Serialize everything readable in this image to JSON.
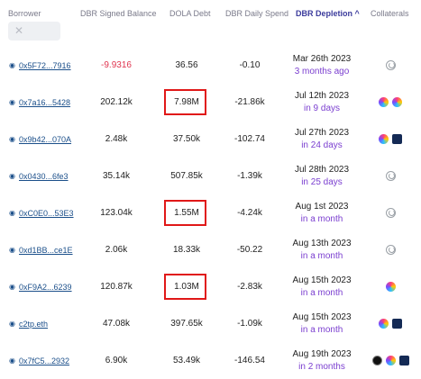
{
  "headers": {
    "borrower": "Borrower",
    "balance": "DBR Signed Balance",
    "debt": "DOLA Debt",
    "spend": "DBR Daily Spend",
    "depletion": "DBR Depletion",
    "depletion_sort": "^",
    "collaterals": "Collaterals"
  },
  "filter": {
    "clear_symbol": "✕"
  },
  "rows": [
    {
      "borrower": "0x5F72...7916",
      "balance": "-9.9316",
      "debt": "36.56",
      "spend": "-0.10",
      "date": "Mar 26th 2023",
      "rel": "3 months ago",
      "coll": [
        "dbr-grey"
      ]
    },
    {
      "borrower": "0x7a16...5428",
      "balance": "202.12k",
      "debt": "7.98M",
      "spend": "-21.86k",
      "date": "Jul 12th 2023",
      "rel": "in 9 days",
      "coll": [
        "color",
        "color"
      ]
    },
    {
      "borrower": "0x9b42...070A",
      "balance": "2.48k",
      "debt": "37.50k",
      "spend": "-102.74",
      "date": "Jul 27th 2023",
      "rel": "in 24 days",
      "coll": [
        "color",
        "dark"
      ]
    },
    {
      "borrower": "0x0430...6fe3",
      "balance": "35.14k",
      "debt": "507.85k",
      "spend": "-1.39k",
      "date": "Jul 28th 2023",
      "rel": "in 25 days",
      "coll": [
        "dbr-grey"
      ]
    },
    {
      "borrower": "0xC0E0...53E3",
      "balance": "123.04k",
      "debt": "1.55M",
      "spend": "-4.24k",
      "date": "Aug 1st 2023",
      "rel": "in a month",
      "coll": [
        "dbr-grey"
      ]
    },
    {
      "borrower": "0xd1BB...ce1E",
      "balance": "2.06k",
      "debt": "18.33k",
      "spend": "-50.22",
      "date": "Aug 13th 2023",
      "rel": "in a month",
      "coll": [
        "dbr-grey"
      ]
    },
    {
      "borrower": "0xF9A2...6239",
      "balance": "120.87k",
      "debt": "1.03M",
      "spend": "-2.83k",
      "date": "Aug 15th 2023",
      "rel": "in a month",
      "coll": [
        "color"
      ]
    },
    {
      "borrower": "c2tp.eth",
      "balance": "47.08k",
      "debt": "397.65k",
      "spend": "-1.09k",
      "date": "Aug 15th 2023",
      "rel": "in a month",
      "coll": [
        "color",
        "dark"
      ]
    },
    {
      "borrower": "0x7fC5...2932",
      "balance": "6.90k",
      "debt": "53.49k",
      "spend": "-146.54",
      "date": "Aug 19th 2023",
      "rel": "in 2 months",
      "coll": [
        "blk",
        "color",
        "dark"
      ]
    }
  ],
  "highlighted_rows": [
    1,
    4,
    6
  ]
}
